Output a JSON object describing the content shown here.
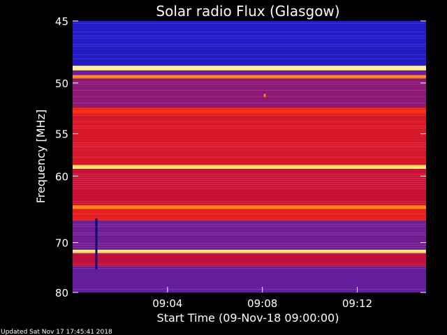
{
  "chart_data": {
    "type": "heatmap",
    "title": "Solar radio Flux (Glasgow)",
    "ylabel": "Frequency [MHz]",
    "xlabel": "Start Time (09-Nov-18 09:00:00)",
    "footer": "Updated Sat Nov 17 17:45:41 2018",
    "x_ticks": [
      "09:04",
      "09:08",
      "09:12"
    ],
    "x_tick_minutes": [
      4,
      8,
      12
    ],
    "xlim_minutes": [
      0,
      14.9
    ],
    "y_ticks": [
      "45",
      "50",
      "55",
      "60",
      "70",
      "80"
    ],
    "y_tick_values": [
      45,
      50,
      55,
      60,
      70,
      80
    ],
    "ylim": [
      45,
      80
    ],
    "y_scale": "reciprocal",
    "colormap": [
      "#05004a",
      "#1c1ccf",
      "#6a1f9e",
      "#c8103a",
      "#ff2a12",
      "#ff7a1e",
      "#ffd23a",
      "#ffffe0"
    ],
    "bands": [
      {
        "from": 45.0,
        "to": 48.5,
        "level": 0.16
      },
      {
        "from": 48.5,
        "to": 48.9,
        "level": 0.95
      },
      {
        "from": 48.9,
        "to": 49.3,
        "level": 0.3
      },
      {
        "from": 49.3,
        "to": 49.6,
        "level": 0.74
      },
      {
        "from": 49.6,
        "to": 52.3,
        "level": 0.34
      },
      {
        "from": 52.3,
        "to": 53.0,
        "level": 0.56
      },
      {
        "from": 53.0,
        "to": 58.6,
        "level": 0.48
      },
      {
        "from": 58.6,
        "to": 59.1,
        "level": 0.9
      },
      {
        "from": 59.1,
        "to": 64.0,
        "level": 0.44
      },
      {
        "from": 64.0,
        "to": 64.6,
        "level": 0.72
      },
      {
        "from": 64.6,
        "to": 66.3,
        "level": 0.52
      },
      {
        "from": 66.3,
        "to": 71.3,
        "level": 0.3
      },
      {
        "from": 71.3,
        "to": 71.9,
        "level": 0.92
      },
      {
        "from": 71.9,
        "to": 74.5,
        "level": 0.42
      },
      {
        "from": 74.5,
        "to": 80.0,
        "level": 0.28
      }
    ],
    "events": [
      {
        "time_minutes": 1.0,
        "freq_from": 66.0,
        "freq_to": 75.0,
        "level": 0.05
      },
      {
        "time_minutes": 8.1,
        "freq_from": 51.0,
        "freq_to": 51.3,
        "level": 0.72
      }
    ]
  }
}
